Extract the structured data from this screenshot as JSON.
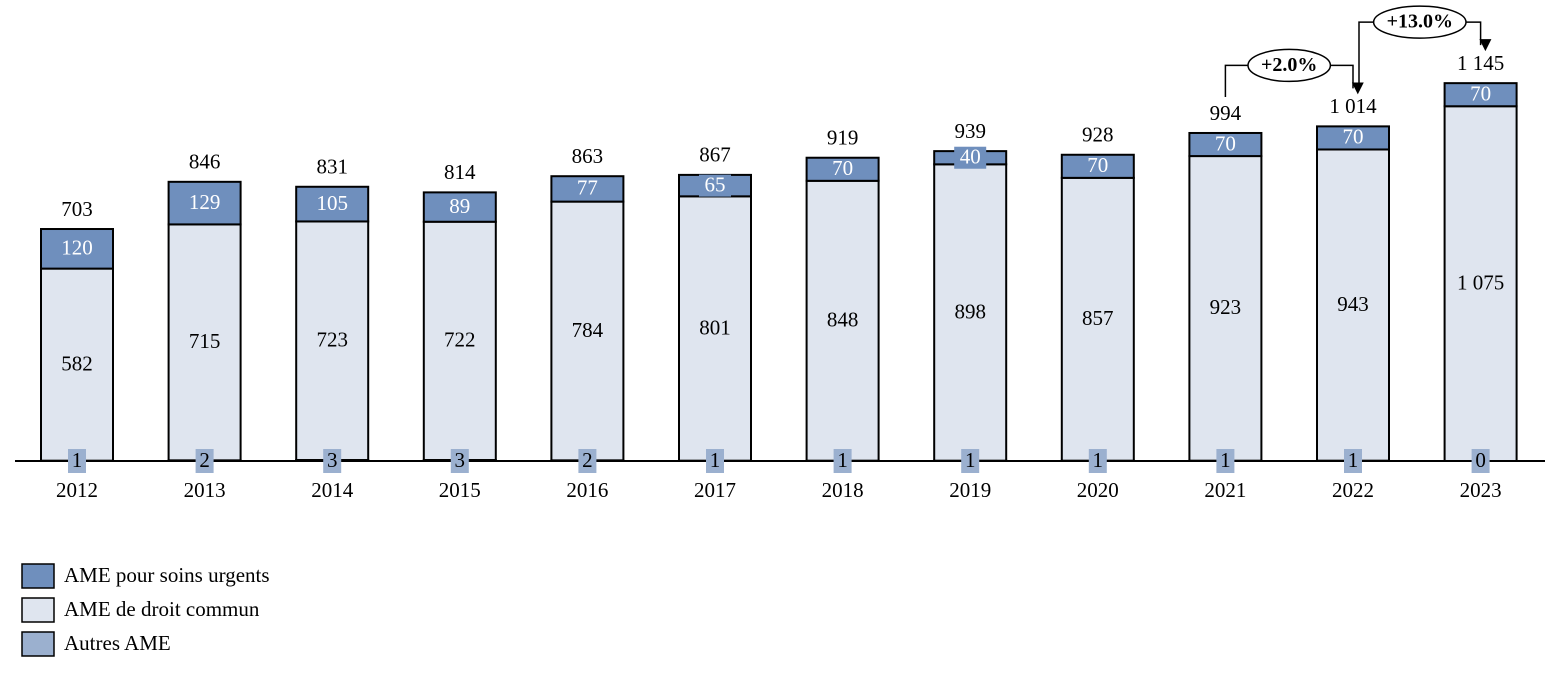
{
  "chart_data": {
    "type": "bar",
    "stacked": true,
    "categories": [
      "2012",
      "2013",
      "2014",
      "2015",
      "2016",
      "2017",
      "2018",
      "2019",
      "2020",
      "2021",
      "2022",
      "2023"
    ],
    "series": [
      {
        "name": "Autres AME",
        "color": "#9bb0cf",
        "values": [
          1,
          2,
          3,
          3,
          2,
          1,
          1,
          1,
          1,
          1,
          1,
          0
        ]
      },
      {
        "name": "AME de droit commun",
        "color": "#dfe5ef",
        "values": [
          582,
          715,
          723,
          722,
          784,
          801,
          848,
          898,
          857,
          923,
          943,
          1075
        ],
        "value_labels": [
          "582",
          "715",
          "723",
          "722",
          "784",
          "801",
          "848",
          "898",
          "857",
          "923",
          "943",
          "1 075"
        ]
      },
      {
        "name": "AME pour soins urgents",
        "color": "#6f8fbd",
        "values": [
          120,
          129,
          105,
          89,
          77,
          65,
          70,
          40,
          70,
          70,
          70,
          70
        ]
      }
    ],
    "totals": {
      "values": [
        703,
        846,
        831,
        814,
        863,
        867,
        919,
        939,
        928,
        994,
        1014,
        1145
      ],
      "value_labels": [
        "703",
        "846",
        "831",
        "814",
        "863",
        "867",
        "919",
        "939",
        "928",
        "994",
        "1 014",
        "1 145"
      ]
    },
    "annotations": [
      {
        "text": "+2.0%"
      },
      {
        "text": "+13.0%"
      }
    ]
  }
}
